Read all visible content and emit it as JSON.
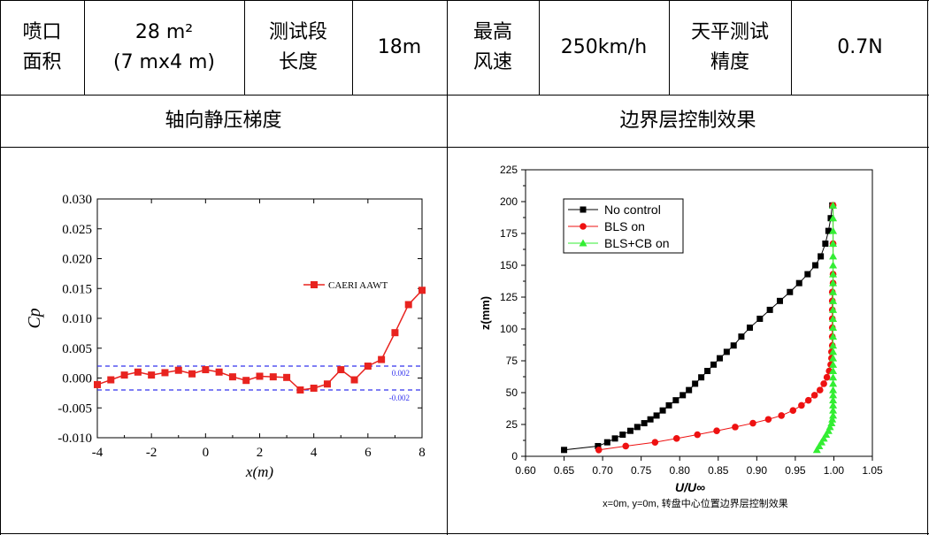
{
  "table": {
    "row1": [
      {
        "text": "喷口\n面积"
      },
      {
        "text": "28 m²\n(7 mx4 m)"
      },
      {
        "text": "测试段\n长度"
      },
      {
        "text": "18m"
      },
      {
        "text": "最高\n风速"
      },
      {
        "text": "250km/h"
      },
      {
        "text": "天平测试\n精度"
      },
      {
        "text": "0.7N"
      }
    ],
    "row2": [
      {
        "text": "轴向静压梯度"
      },
      {
        "text": "边界层控制效果"
      }
    ]
  },
  "chart_data": [
    {
      "type": "line",
      "title": "",
      "xlabel": "x(m)",
      "ylabel": "Cp",
      "xlim": [
        -4,
        8
      ],
      "ylim": [
        -0.01,
        0.03
      ],
      "xticks": [
        "-4",
        "-2",
        "0",
        "2",
        "4",
        "6",
        "8"
      ],
      "yticks": [
        "-0.010",
        "-0.005",
        "0.000",
        "0.005",
        "0.010",
        "0.015",
        "0.020",
        "0.025",
        "0.030"
      ],
      "legend": {
        "placement": "right",
        "entries": [
          "CAERI AAWT"
        ]
      },
      "series": [
        {
          "name": "CAERI AAWT",
          "color": "#e8231f",
          "x": [
            -4.0,
            -3.5,
            -3.0,
            -2.5,
            -2.0,
            -1.5,
            -1.0,
            -0.5,
            0.0,
            0.5,
            1.0,
            1.5,
            2.0,
            2.5,
            3.0,
            3.5,
            4.0,
            4.5,
            5.0,
            5.5,
            6.0,
            6.5,
            7.0,
            7.5,
            8.0
          ],
          "y": [
            -0.0011,
            -0.0003,
            0.0005,
            0.001,
            0.0005,
            0.0009,
            0.0013,
            0.0007,
            0.0014,
            0.001,
            0.0002,
            -0.0004,
            0.0003,
            0.0002,
            0.0001,
            -0.002,
            -0.0017,
            -0.001,
            0.0014,
            -0.0003,
            0.002,
            0.0031,
            0.0076,
            0.0123,
            0.0147
          ]
        }
      ],
      "reference_lines": [
        {
          "value": 0.002,
          "label": "0.002",
          "color": "#3333ee"
        },
        {
          "value": -0.002,
          "label": "-0.002",
          "color": "#3333ee"
        }
      ]
    },
    {
      "type": "line",
      "title": "",
      "xlabel": "U/U∞",
      "ylabel": "z(mm)",
      "xlim": [
        0.6,
        1.05
      ],
      "ylim": [
        0,
        225
      ],
      "xticks": [
        "0.60",
        "0.65",
        "0.70",
        "0.75",
        "0.80",
        "0.85",
        "0.90",
        "0.95",
        "1.00",
        "1.05"
      ],
      "yticks": [
        "0",
        "25",
        "50",
        "75",
        "100",
        "125",
        "150",
        "175",
        "200",
        "225"
      ],
      "legend": {
        "placement": "top-left",
        "entries": [
          "No control",
          "BLS on",
          "BLS+CB on"
        ]
      },
      "caption": "x=0m, y=0m, 转盘中心位置边界层控制效果",
      "series": [
        {
          "name": "No control",
          "color": "#000000",
          "marker": "square",
          "x": [
            0.65,
            0.694,
            0.706,
            0.716,
            0.726,
            0.736,
            0.745,
            0.754,
            0.762,
            0.77,
            0.778,
            0.786,
            0.795,
            0.804,
            0.812,
            0.82,
            0.828,
            0.836,
            0.844,
            0.852,
            0.861,
            0.87,
            0.88,
            0.891,
            0.904,
            0.917,
            0.93,
            0.943,
            0.955,
            0.966,
            0.976,
            0.983,
            0.989,
            0.993,
            0.996,
            0.998
          ],
          "y": [
            5,
            8,
            11,
            14,
            17,
            20,
            23,
            26,
            29,
            32,
            36,
            40,
            44,
            48,
            52,
            57,
            62,
            67,
            72,
            77,
            82,
            87,
            94,
            101,
            108,
            115,
            122,
            129,
            136,
            143,
            150,
            157,
            167,
            177,
            187,
            197
          ]
        },
        {
          "name": "BLS on",
          "color": "#ee1111",
          "marker": "circle",
          "x": [
            0.695,
            0.73,
            0.768,
            0.796,
            0.823,
            0.848,
            0.872,
            0.895,
            0.915,
            0.932,
            0.947,
            0.958,
            0.967,
            0.975,
            0.982,
            0.987,
            0.991,
            0.994,
            0.996,
            0.997,
            0.997,
            0.998,
            0.998,
            0.998,
            0.998,
            0.998,
            0.998,
            0.998,
            0.999,
            0.999,
            0.999,
            0.999
          ],
          "y": [
            5,
            8,
            11,
            14,
            17,
            20,
            23,
            26,
            29,
            32,
            36,
            40,
            44,
            48,
            52,
            57,
            62,
            67,
            72,
            77,
            82,
            87,
            94,
            101,
            108,
            115,
            122,
            129,
            136,
            143,
            167,
            197
          ]
        },
        {
          "name": "BLS+CB on",
          "color": "#33ee33",
          "marker": "triangle",
          "x": [
            0.978,
            0.981,
            0.984,
            0.987,
            0.99,
            0.993,
            0.995,
            0.997,
            0.998,
            0.999,
            0.999,
            0.999,
            0.999,
            0.999,
            0.999,
            0.999,
            0.999,
            0.999,
            0.999,
            0.999,
            0.999,
            0.999,
            0.999,
            0.999,
            0.999,
            0.999,
            0.999,
            0.999,
            0.999,
            0.999,
            0.999,
            0.999,
            0.999,
            0.999,
            0.999,
            0.999
          ],
          "y": [
            5,
            8,
            11,
            14,
            17,
            20,
            23,
            26,
            29,
            32,
            36,
            40,
            44,
            48,
            52,
            57,
            62,
            67,
            72,
            77,
            82,
            87,
            94,
            101,
            108,
            115,
            122,
            129,
            136,
            143,
            150,
            157,
            167,
            177,
            187,
            197
          ]
        }
      ]
    }
  ]
}
